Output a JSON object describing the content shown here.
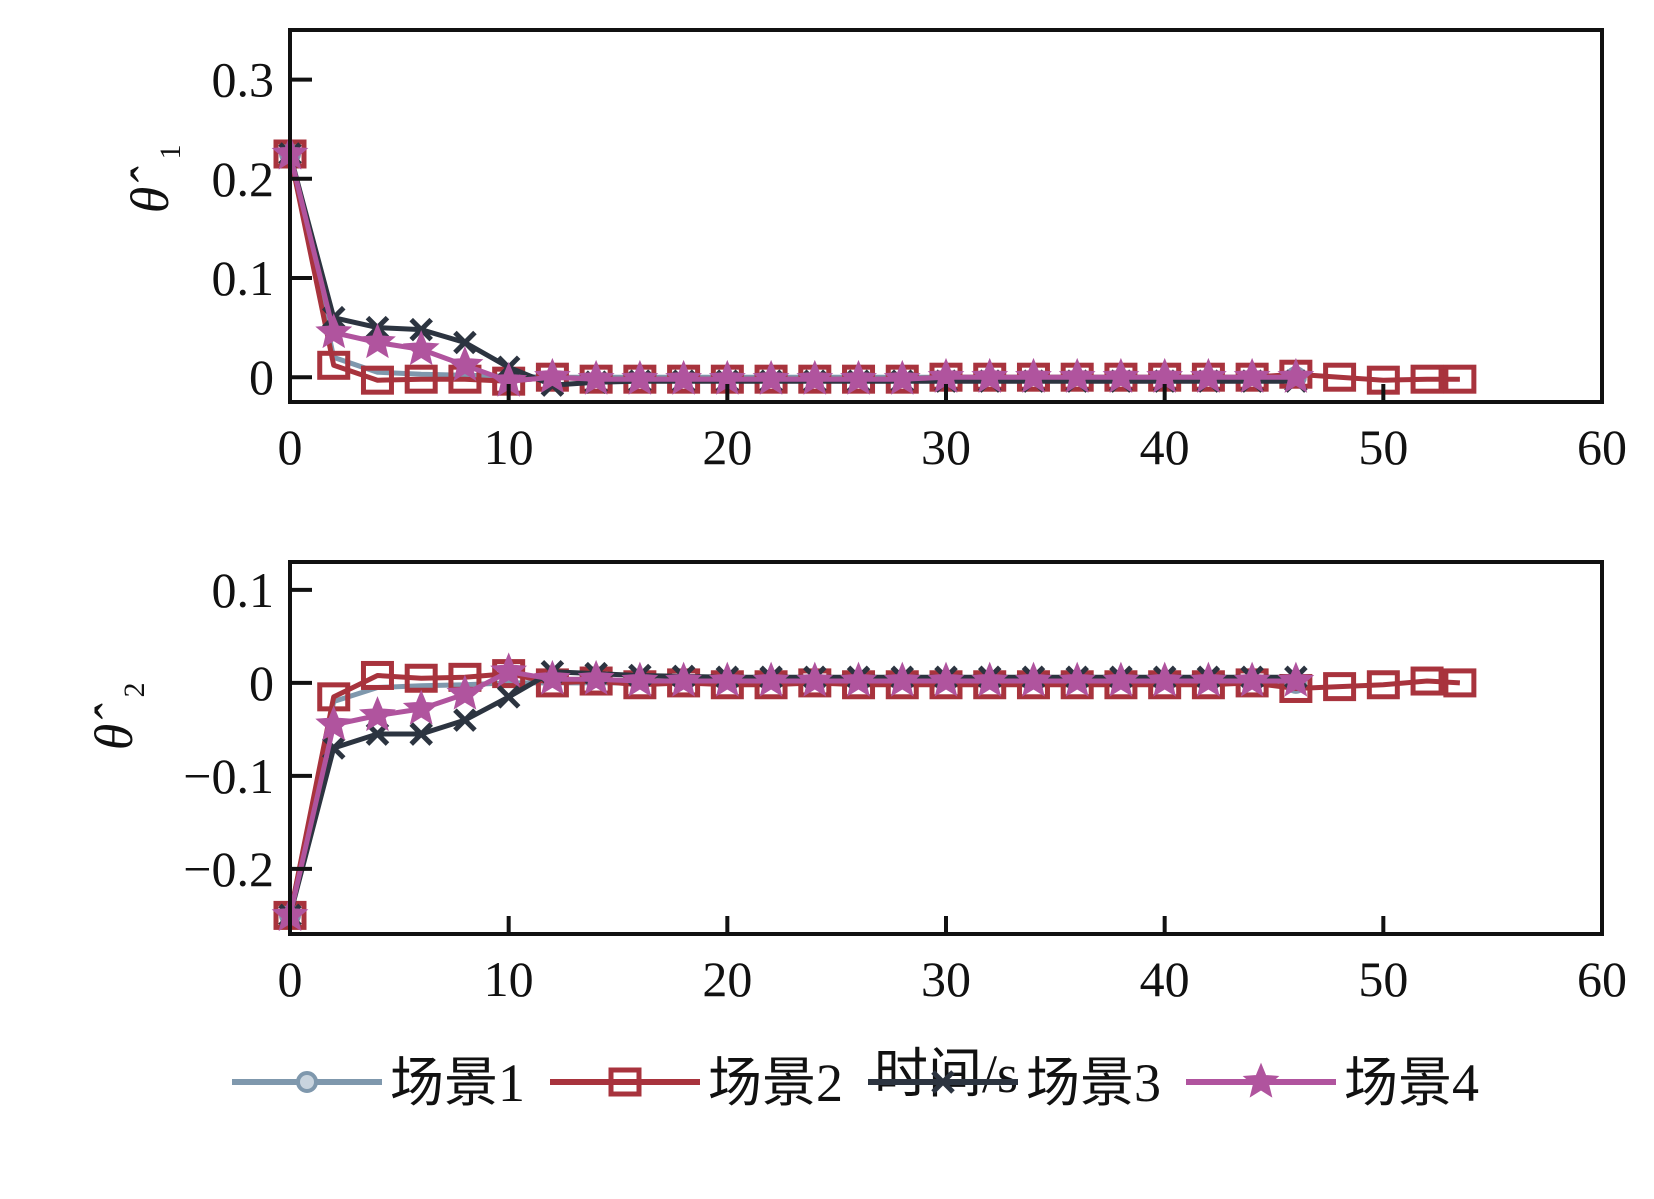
{
  "chart_data": [
    {
      "type": "line",
      "ylabel": "θ̂",
      "ylabel_subscript": "1",
      "xlim": [
        0,
        60
      ],
      "ylim": [
        -0.025,
        0.35
      ],
      "xticks": [
        0,
        10,
        20,
        30,
        40,
        50,
        60
      ],
      "yticks": [
        0,
        0.1,
        0.2,
        0.3
      ],
      "xtick_labels": [
        "0",
        "10",
        "20",
        "30",
        "40",
        "50",
        "60"
      ],
      "ytick_labels": [
        "0",
        "0.1",
        "0.2",
        "0.3"
      ],
      "grid": false,
      "series": [
        {
          "name": "场景1",
          "color": "#7f98ad",
          "marker": "circle",
          "x": [
            0,
            2,
            4,
            6,
            8,
            10,
            12,
            14,
            16,
            18,
            20,
            22,
            24,
            26,
            28,
            30,
            32,
            34,
            36,
            38,
            40,
            42,
            44,
            46
          ],
          "y": [
            0.225,
            0.02,
            0.005,
            0.003,
            0.002,
            0.001,
            0.0,
            0.0,
            0.0,
            0.0,
            0.0,
            0.0,
            0.0,
            0.0,
            0.0,
            0.0,
            0.0,
            0.0,
            0.0,
            0.0,
            0.0,
            0.0,
            0.0,
            0.0
          ]
        },
        {
          "name": "场景2",
          "color": "#a8333d",
          "marker": "square",
          "x": [
            0,
            2,
            4,
            6,
            8,
            10,
            12,
            14,
            16,
            18,
            20,
            22,
            24,
            26,
            28,
            30,
            32,
            34,
            36,
            38,
            40,
            42,
            44,
            46,
            48,
            50,
            52,
            53.5
          ],
          "y": [
            0.225,
            0.012,
            -0.003,
            -0.002,
            -0.002,
            -0.004,
            0.0,
            -0.002,
            -0.002,
            -0.002,
            -0.002,
            -0.002,
            -0.002,
            -0.002,
            -0.002,
            0.0,
            0.0,
            0.0,
            0.0,
            0.0,
            0.0,
            0.0,
            0.0,
            0.003,
            0.0,
            -0.003,
            -0.002,
            -0.002
          ]
        },
        {
          "name": "场景3",
          "color": "#2c3440",
          "marker": "x",
          "x": [
            0,
            2,
            4,
            6,
            8,
            10,
            12,
            14,
            16,
            18,
            20,
            22,
            24,
            26,
            28,
            30,
            32,
            34,
            36,
            38,
            40,
            42,
            44,
            46
          ],
          "y": [
            0.225,
            0.06,
            0.05,
            0.048,
            0.035,
            0.01,
            -0.008,
            -0.005,
            -0.004,
            -0.004,
            -0.004,
            -0.004,
            -0.004,
            -0.004,
            -0.004,
            -0.004,
            -0.004,
            -0.004,
            -0.004,
            -0.004,
            -0.004,
            -0.004,
            -0.004,
            -0.004
          ]
        },
        {
          "name": "场景4",
          "color": "#b0549e",
          "marker": "star",
          "x": [
            0,
            2,
            4,
            6,
            8,
            10,
            12,
            14,
            16,
            18,
            20,
            22,
            24,
            26,
            28,
            30,
            32,
            34,
            36,
            38,
            40,
            42,
            44,
            46
          ],
          "y": [
            0.225,
            0.045,
            0.035,
            0.028,
            0.012,
            -0.004,
            0.0,
            -0.002,
            -0.002,
            -0.002,
            -0.002,
            -0.002,
            -0.002,
            -0.002,
            -0.002,
            0.0,
            0.0,
            0.0,
            0.0,
            0.0,
            0.0,
            0.0,
            0.0,
            0.0
          ]
        }
      ]
    },
    {
      "type": "line",
      "ylabel": "θ̂",
      "ylabel_subscript": "2",
      "xlim": [
        0,
        60
      ],
      "ylim": [
        -0.27,
        0.13
      ],
      "xticks": [
        0,
        10,
        20,
        30,
        40,
        50,
        60
      ],
      "yticks": [
        -0.2,
        -0.1,
        0,
        0.1
      ],
      "xtick_labels": [
        "0",
        "10",
        "20",
        "30",
        "40",
        "50",
        "60"
      ],
      "ytick_labels": [
        "−0.2",
        "−0.1",
        "0",
        "0.1"
      ],
      "xlabel": "时间/s",
      "grid": false,
      "series": [
        {
          "name": "场景1",
          "color": "#7f98ad",
          "marker": "circle",
          "x": [
            0,
            2,
            4,
            6,
            8,
            10,
            12,
            14,
            16,
            18,
            20,
            22,
            24,
            26,
            28,
            30,
            32,
            34,
            36,
            38,
            40,
            42,
            44,
            46
          ],
          "y": [
            -0.25,
            -0.02,
            -0.005,
            -0.003,
            -0.002,
            0.0,
            0.0,
            0.0,
            0.0,
            0.0,
            0.0,
            0.0,
            0.0,
            0.0,
            0.0,
            0.0,
            0.0,
            0.0,
            0.0,
            0.0,
            0.0,
            0.0,
            0.0,
            0.0
          ]
        },
        {
          "name": "场景2",
          "color": "#a8333d",
          "marker": "square",
          "x": [
            0,
            2,
            4,
            6,
            8,
            10,
            12,
            14,
            16,
            18,
            20,
            22,
            24,
            26,
            28,
            30,
            32,
            34,
            36,
            38,
            40,
            42,
            44,
            46,
            48,
            50,
            52,
            53.5
          ],
          "y": [
            -0.25,
            -0.015,
            0.008,
            0.005,
            0.006,
            0.01,
            0.0,
            0.002,
            -0.002,
            0.0,
            -0.002,
            -0.002,
            0.0,
            -0.002,
            -0.002,
            -0.002,
            -0.002,
            -0.002,
            -0.002,
            -0.002,
            -0.002,
            -0.002,
            0.0,
            -0.006,
            -0.004,
            -0.002,
            0.002,
            0.0
          ]
        },
        {
          "name": "场景3",
          "color": "#2c3440",
          "marker": "x",
          "x": [
            0,
            2,
            4,
            6,
            8,
            10,
            12,
            14,
            16,
            18,
            20,
            22,
            24,
            26,
            28,
            30,
            32,
            34,
            36,
            38,
            40,
            42,
            44,
            46
          ],
          "y": [
            -0.25,
            -0.07,
            -0.055,
            -0.055,
            -0.04,
            -0.015,
            0.012,
            0.01,
            0.008,
            0.007,
            0.006,
            0.006,
            0.006,
            0.006,
            0.006,
            0.006,
            0.006,
            0.006,
            0.006,
            0.006,
            0.006,
            0.006,
            0.006,
            0.006
          ]
        },
        {
          "name": "场景4",
          "color": "#b0549e",
          "marker": "star",
          "x": [
            0,
            2,
            4,
            6,
            8,
            10,
            12,
            14,
            16,
            18,
            20,
            22,
            24,
            26,
            28,
            30,
            32,
            34,
            36,
            38,
            40,
            42,
            44,
            46
          ],
          "y": [
            -0.25,
            -0.045,
            -0.035,
            -0.028,
            -0.012,
            0.012,
            0.004,
            0.004,
            0.002,
            0.002,
            0.002,
            0.002,
            0.002,
            0.002,
            0.002,
            0.002,
            0.002,
            0.002,
            0.002,
            0.002,
            0.002,
            0.002,
            0.002,
            0.002
          ]
        }
      ]
    }
  ],
  "legend": {
    "placement": "bottom",
    "items": [
      {
        "label": "场景1",
        "color": "#7f98ad",
        "marker": "circle"
      },
      {
        "label": "场景2",
        "color": "#a8333d",
        "marker": "square"
      },
      {
        "label": "场景3",
        "color": "#2c3440",
        "marker": "x"
      },
      {
        "label": "场景4",
        "color": "#b0549e",
        "marker": "star"
      }
    ]
  }
}
